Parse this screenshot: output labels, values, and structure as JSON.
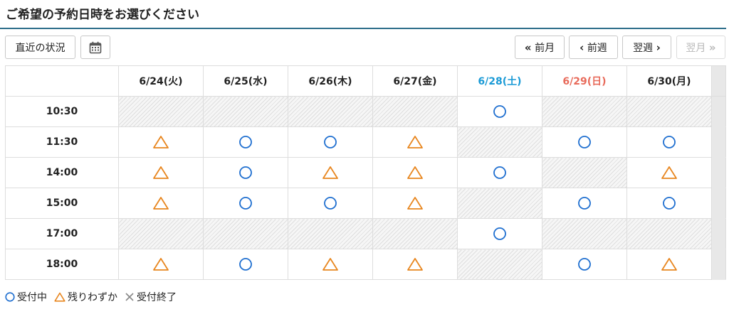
{
  "header": {
    "title": "ご希望の予約日時をお選びください"
  },
  "toolbar": {
    "recent_label": "直近の状況",
    "calendar_icon": "calendar-icon",
    "prev_month_label": "前月",
    "prev_week_label": "前週",
    "next_week_label": "翌週",
    "next_month_label": "翌月"
  },
  "schedule": {
    "days": [
      {
        "label": "6/24(火)",
        "kind": "weekday"
      },
      {
        "label": "6/25(水)",
        "kind": "weekday"
      },
      {
        "label": "6/26(木)",
        "kind": "weekday"
      },
      {
        "label": "6/27(金)",
        "kind": "weekday"
      },
      {
        "label": "6/28(土)",
        "kind": "sat"
      },
      {
        "label": "6/29(日)",
        "kind": "sun"
      },
      {
        "label": "6/30(月)",
        "kind": "weekday"
      }
    ],
    "rows": [
      {
        "time": "10:30",
        "slots": [
          "none",
          "none",
          "none",
          "none",
          "open",
          "none",
          "none"
        ]
      },
      {
        "time": "11:30",
        "slots": [
          "few",
          "open",
          "open",
          "few",
          "none",
          "open",
          "open"
        ]
      },
      {
        "time": "14:00",
        "slots": [
          "few",
          "open",
          "few",
          "few",
          "open",
          "none",
          "few"
        ]
      },
      {
        "time": "15:00",
        "slots": [
          "few",
          "open",
          "open",
          "few",
          "none",
          "open",
          "open"
        ]
      },
      {
        "time": "17:00",
        "slots": [
          "none",
          "none",
          "none",
          "none",
          "open",
          "none",
          "none"
        ]
      },
      {
        "time": "18:00",
        "slots": [
          "few",
          "open",
          "few",
          "few",
          "none",
          "open",
          "few"
        ]
      }
    ]
  },
  "legend": {
    "open_label": "受付中",
    "few_label": "残りわずか",
    "closed_label": "受付終了"
  },
  "colors": {
    "accent": "#2d6e8a",
    "open": "#1f6fd0",
    "few": "#e8861f",
    "closed": "#888888",
    "saturday": "#1a9ad6",
    "sunday": "#e86b5b"
  }
}
